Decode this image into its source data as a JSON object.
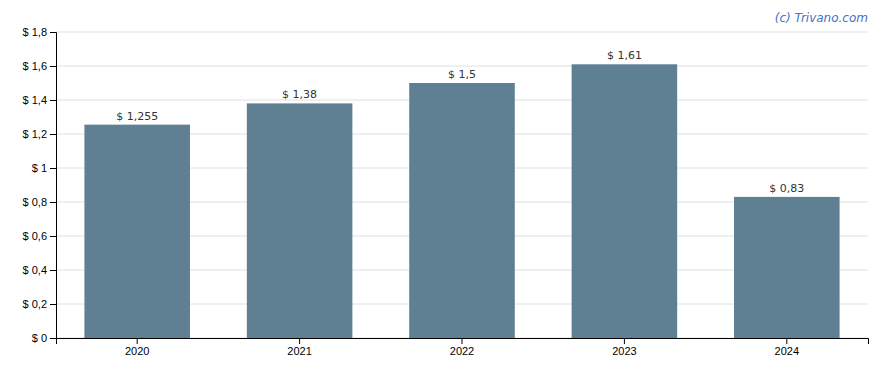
{
  "chart_data": {
    "type": "bar",
    "annotation": "(c) Trivano.com",
    "categories": [
      "2020",
      "2021",
      "2022",
      "2023",
      "2024"
    ],
    "values": [
      1.255,
      1.38,
      1.5,
      1.61,
      0.83
    ],
    "value_labels": [
      "$ 1,255",
      "$ 1,38",
      "$ 1,5",
      "$ 1,61",
      "$ 0,83"
    ],
    "data_labels": true,
    "color": "#5f7f93",
    "ylim": [
      0,
      1.8
    ],
    "yticks": [
      {
        "value": 0,
        "label": "$ 0"
      },
      {
        "value": 0.2,
        "label": "$ 0,2"
      },
      {
        "value": 0.4,
        "label": "$ 0,4"
      },
      {
        "value": 0.6,
        "label": "$ 0,6"
      },
      {
        "value": 0.8,
        "label": "$ 0,8"
      },
      {
        "value": 1.0,
        "label": "$ 1"
      },
      {
        "value": 1.2,
        "label": "$ 1,2"
      },
      {
        "value": 1.4,
        "label": "$ 1,4"
      },
      {
        "value": 1.6,
        "label": "$ 1,6"
      },
      {
        "value": 1.8,
        "label": "$ 1,8"
      }
    ],
    "grid": true
  }
}
